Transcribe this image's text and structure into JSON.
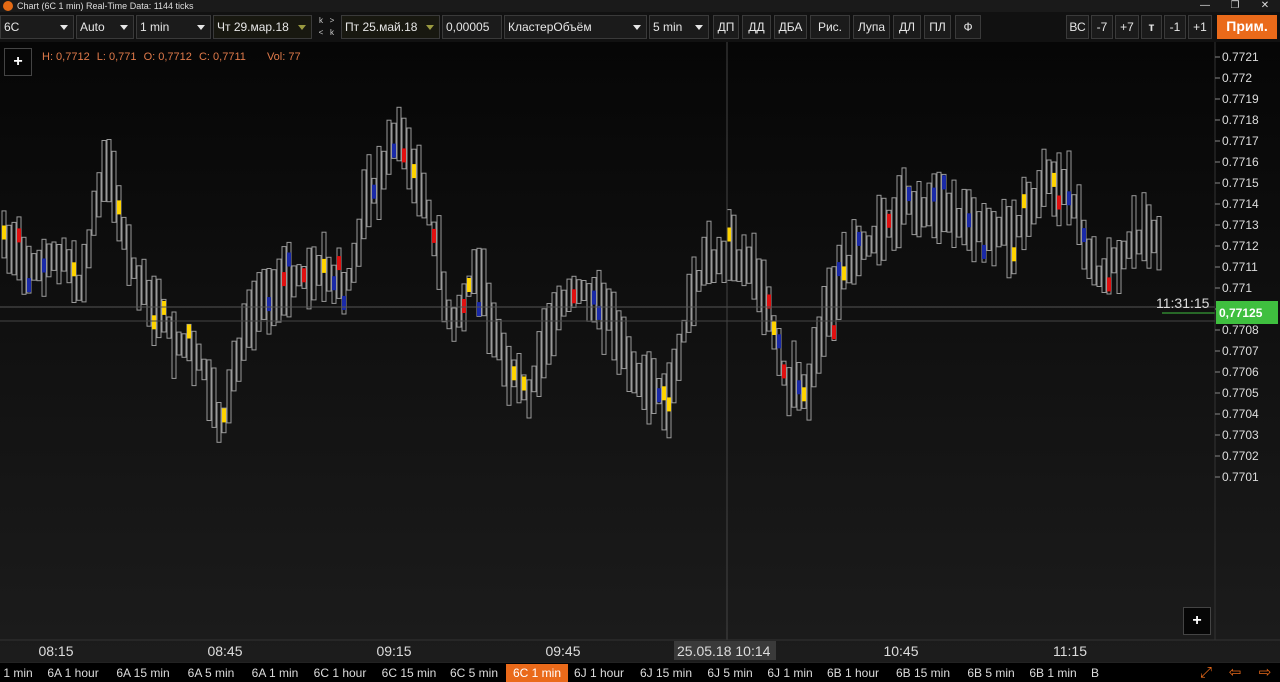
{
  "window": {
    "title": "Chart (6C 1 min) Real-Time Data: 1144 ticks",
    "minimize": "—",
    "maximize": "❐",
    "close": "✕"
  },
  "toolbar": {
    "symbol": "6C",
    "scale": "Auto",
    "timeframe": "1 min",
    "date_from": "Чт 29.мар.18",
    "k_top": "k",
    "k_arrow_right": ">",
    "k_arrow_left": "<",
    "k_bottom": "k",
    "date_to": "Пт 25.май.18",
    "tick_size": "0,00005",
    "indicator": "КластерОбъём",
    "cluster_tf": "5 min",
    "buttons": [
      "ДП",
      "ДД",
      "ДБА",
      "Рис.",
      "Лупа",
      "ДЛ",
      "ПЛ",
      "Ф"
    ],
    "right_buttons": [
      "ВС",
      "-7",
      "+7",
      "т",
      "-1",
      "+1"
    ],
    "apply": "Прим."
  },
  "chart": {
    "plus_top": "+",
    "plus_bottom": "+",
    "ohlc": {
      "high": "H: 0,7712",
      "low": "L: 0,771",
      "open": "O: 0,7712",
      "close": "C: 0,7711",
      "volume": "Vol: 77"
    },
    "price_ticks": [
      "0.7721",
      "0.772",
      "0.7719",
      "0.7718",
      "0.7717",
      "0.7716",
      "0.7715",
      "0.7714",
      "0.7713",
      "0.7712",
      "0.7711",
      "0.771",
      "0.7709",
      "0.7708",
      "0.7707",
      "0.7706",
      "0.7705",
      "0.7704",
      "0.7703",
      "0.7702",
      "0.7701"
    ],
    "time_ticks": [
      "08:15",
      "08:45",
      "09:15",
      "09:45",
      "10:45",
      "11:15"
    ],
    "crosshair_time": "25.05.18 10:14",
    "clock": "11:31:15",
    "current_price": "0,77125",
    "colors": {
      "background": "#0b0b0b",
      "bar_outline": "#9a9a9a",
      "cluster_yellow": "#ffd400",
      "cluster_red": "#e01010",
      "cluster_blue": "#1a2aa8",
      "current_price": "#3fbf3f",
      "accent": "#ea6a1a"
    }
  },
  "tabs": [
    {
      "label": "1 min",
      "active": false
    },
    {
      "label": "6A 1 hour",
      "active": false
    },
    {
      "label": "6A 15 min",
      "active": false
    },
    {
      "label": "6A 5 min",
      "active": false
    },
    {
      "label": "6A 1 min",
      "active": false
    },
    {
      "label": "6C 1 hour",
      "active": false
    },
    {
      "label": "6C 15 min",
      "active": false
    },
    {
      "label": "6C 5 min",
      "active": false
    },
    {
      "label": "6C 1 min",
      "active": true
    },
    {
      "label": "6J 1 hour",
      "active": false
    },
    {
      "label": "6J 15 min",
      "active": false
    },
    {
      "label": "6J 5 min",
      "active": false
    },
    {
      "label": "6J 1 min",
      "active": false
    },
    {
      "label": "6B 1 hour",
      "active": false
    },
    {
      "label": "6B 15 min",
      "active": false
    },
    {
      "label": "6B 5 min",
      "active": false
    },
    {
      "label": "6B 1 min",
      "active": false
    },
    {
      "label": "B",
      "active": false
    }
  ],
  "tab_nav": {
    "expand": "⤢",
    "prev": "⇦",
    "next": "⇨"
  }
}
